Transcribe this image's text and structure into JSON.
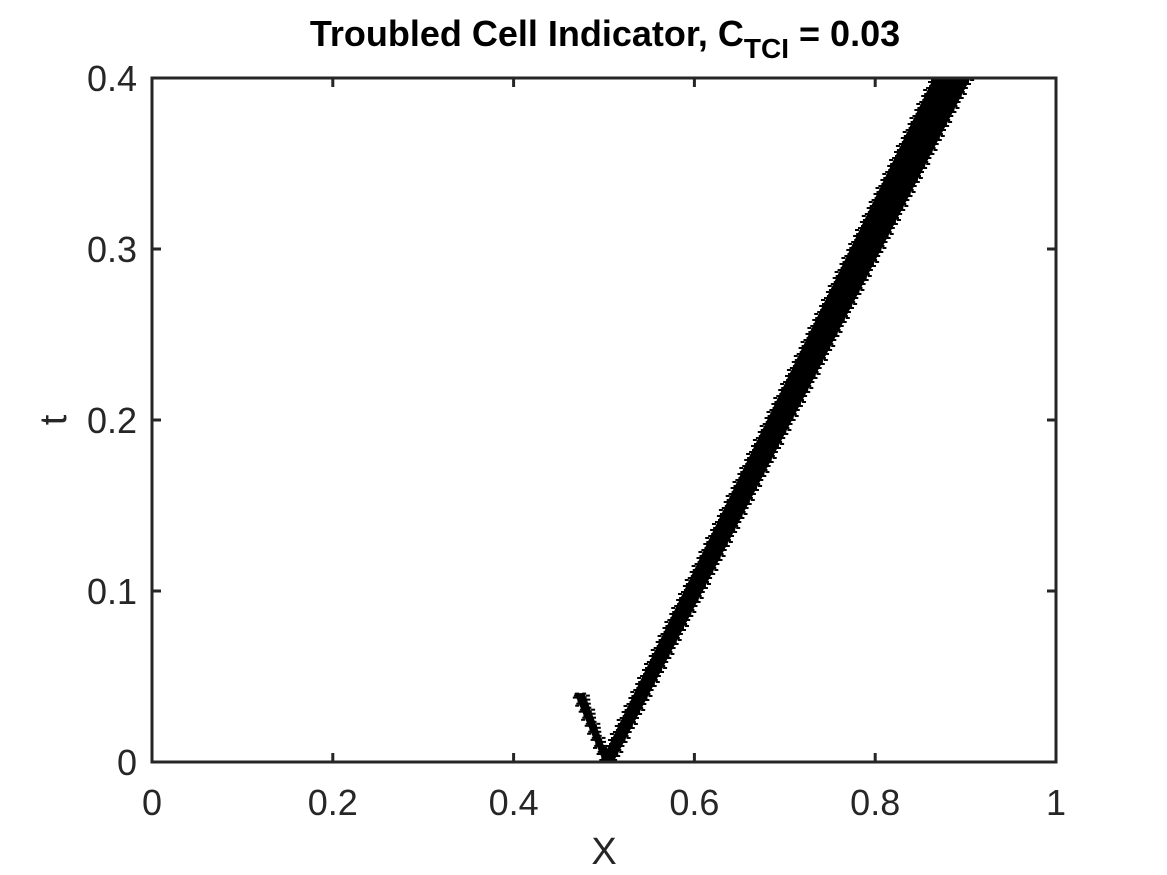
{
  "chart_data": {
    "type": "scatter",
    "title": {
      "prefix": "Troubled Cell Indicator, C",
      "subscript": "TCI",
      "suffix": " = 0.03"
    },
    "xlabel": "X",
    "ylabel": "t",
    "xlim": [
      0,
      1
    ],
    "ylim": [
      0,
      0.4
    ],
    "xticks": [
      "0",
      "0.2",
      "0.4",
      "0.6",
      "0.8",
      "1"
    ],
    "yticks": [
      "0",
      "0.1",
      "0.2",
      "0.3",
      "0.4"
    ],
    "grid": false,
    "marker_color": "#000000",
    "axis_color": "#262626",
    "regions": [
      {
        "name": "shock band",
        "t_range": [
          0,
          0.4
        ],
        "left_edge_x": [
          0.497,
          0.865
        ],
        "right_edge_x": [
          0.51,
          0.905
        ]
      },
      {
        "name": "rarefaction spike",
        "t_range": [
          0,
          0.04
        ],
        "left_edge_x": [
          0.5,
          0.468
        ],
        "right_edge_x": [
          0.506,
          0.478
        ]
      }
    ]
  }
}
